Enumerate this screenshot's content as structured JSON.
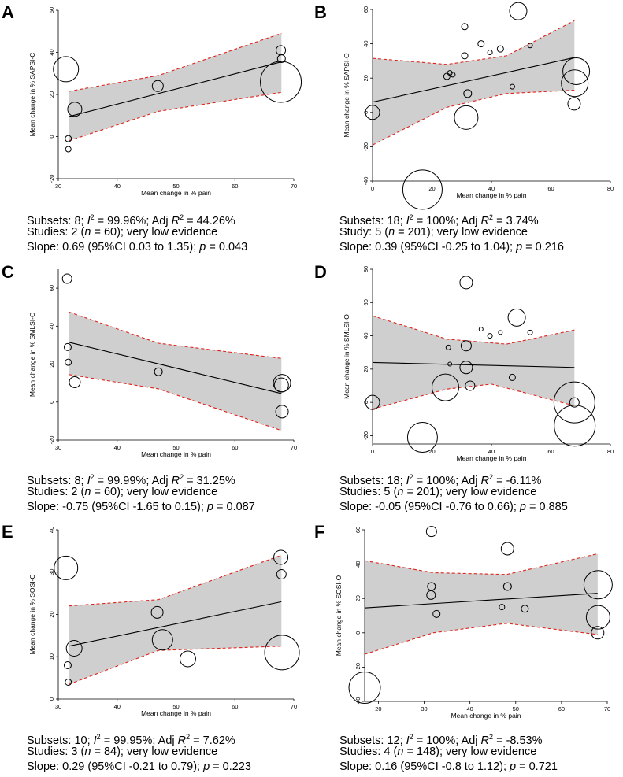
{
  "chart_data": [
    {
      "type": "scatter",
      "letter": "A",
      "xlabel": "Mean change in % pain",
      "ylabel": "Mean change in % SAPSI-C",
      "xlim": [
        30,
        70
      ],
      "ylim": [
        -20,
        60
      ],
      "xticks": [
        "30",
        "40",
        "50",
        "60",
        "70"
      ],
      "yticks": [
        "-20",
        "0",
        "20",
        "40",
        "60"
      ],
      "points": [
        {
          "x": 31.3,
          "y": 32,
          "size": 16
        },
        {
          "x": 31.7,
          "y": -1,
          "size": 4
        },
        {
          "x": 31.7,
          "y": -6,
          "size": 3.5
        },
        {
          "x": 32.8,
          "y": 13,
          "size": 9
        },
        {
          "x": 46.9,
          "y": 24,
          "size": 7
        },
        {
          "x": 67.8,
          "y": 41,
          "size": 6
        },
        {
          "x": 67.9,
          "y": 37,
          "size": 5
        },
        {
          "x": 67.8,
          "y": 26,
          "size": 26
        }
      ],
      "fit": {
        "x": [
          31.8,
          67.9
        ],
        "y": [
          9.5,
          35.5
        ]
      },
      "ci_upper": [
        {
          "x": 31.8,
          "y": 21.5
        },
        {
          "x": 47,
          "y": 29
        },
        {
          "x": 67.9,
          "y": 49
        }
      ],
      "ci_lower": [
        {
          "x": 31.8,
          "y": -2
        },
        {
          "x": 47,
          "y": 12
        },
        {
          "x": 67.9,
          "y": 21
        }
      ],
      "stats": {
        "line1": {
          "pre": "Subsets: 8; ",
          "i2": "I",
          "i2sup": "2",
          "i2val": " = 99.96%; Adj ",
          "r2": "R",
          "r2sup": "2",
          "r2val": " = 44.26%"
        },
        "line2": {
          "pre": "Studies: 2 (",
          "n": "n",
          "post": " = 60); very low evidence"
        },
        "line3": {
          "pre": "Slope: 0.69 (95%CI 0.03 to 1.35); ",
          "p": "p",
          "post": " = 0.043"
        }
      }
    },
    {
      "type": "scatter",
      "letter": "B",
      "xlabel": "Mean change in % pain",
      "ylabel": "Mean change in % SAPSI-O",
      "xlim": [
        0,
        80
      ],
      "ylim": [
        -40,
        60
      ],
      "xticks": [
        "0",
        "20",
        "40",
        "60",
        "80"
      ],
      "yticks": [
        "-40",
        "-20",
        "0",
        "20",
        "40",
        "60"
      ],
      "points": [
        {
          "x": 0,
          "y": 0,
          "size": 9
        },
        {
          "x": 16.8,
          "y": -45,
          "size": 25
        },
        {
          "x": 25,
          "y": 21,
          "size": 4
        },
        {
          "x": 26,
          "y": 23,
          "size": 3
        },
        {
          "x": 27,
          "y": 22,
          "size": 3
        },
        {
          "x": 31,
          "y": 50,
          "size": 4
        },
        {
          "x": 31,
          "y": 33,
          "size": 4
        },
        {
          "x": 32,
          "y": 11,
          "size": 5
        },
        {
          "x": 31.5,
          "y": -3,
          "size": 15
        },
        {
          "x": 36.5,
          "y": 40,
          "size": 4
        },
        {
          "x": 39.5,
          "y": 35,
          "size": 3
        },
        {
          "x": 43,
          "y": 37,
          "size": 4
        },
        {
          "x": 47,
          "y": 15,
          "size": 3
        },
        {
          "x": 49,
          "y": 59,
          "size": 11
        },
        {
          "x": 53,
          "y": 39,
          "size": 3
        },
        {
          "x": 68.5,
          "y": 24,
          "size": 17
        },
        {
          "x": 68,
          "y": 17,
          "size": 17
        },
        {
          "x": 67.8,
          "y": 5,
          "size": 8
        }
      ],
      "fit": {
        "x": [
          0,
          67.9
        ],
        "y": [
          6,
          32
        ]
      },
      "ci_upper": [
        {
          "x": 0,
          "y": 31.5
        },
        {
          "x": 25,
          "y": 28
        },
        {
          "x": 45,
          "y": 33
        },
        {
          "x": 67.9,
          "y": 53.5
        }
      ],
      "ci_lower": [
        {
          "x": 0,
          "y": -19
        },
        {
          "x": 25,
          "y": 3
        },
        {
          "x": 45,
          "y": 11
        },
        {
          "x": 67.9,
          "y": 13
        }
      ],
      "stats": {
        "line1": {
          "pre": "Subsets: 18; ",
          "i2": "I",
          "i2sup": "2",
          "i2val": " = 100%; Adj ",
          "r2": "R",
          "r2sup": "2",
          "r2val": " = 3.74%"
        },
        "line2": {
          "pre": "Study: 5 (",
          "n": "n",
          "post": " = 201); very low evidence"
        },
        "line3": {
          "pre": "Slope: 0.39 (95%CI -0.25 to 1.04); ",
          "p": "p",
          "post": " = 0.216"
        }
      }
    },
    {
      "type": "scatter",
      "letter": "C",
      "xlabel": "Mean change in % pain",
      "ylabel": "Mean change in % SMLSI-C",
      "xlim": [
        30,
        70
      ],
      "ylim": [
        -20,
        70
      ],
      "xticks": [
        "30",
        "40",
        "50",
        "60",
        "70"
      ],
      "yticks": [
        "-20",
        "0",
        "20",
        "40",
        "60"
      ],
      "points": [
        {
          "x": 31.5,
          "y": 65,
          "size": 6
        },
        {
          "x": 31.6,
          "y": 29,
          "size": 4.5
        },
        {
          "x": 31.7,
          "y": 21,
          "size": 4
        },
        {
          "x": 32.8,
          "y": 10.5,
          "size": 7
        },
        {
          "x": 47,
          "y": 16,
          "size": 5
        },
        {
          "x": 68,
          "y": 10,
          "size": 11
        },
        {
          "x": 67.9,
          "y": 9,
          "size": 9
        },
        {
          "x": 68,
          "y": -5,
          "size": 8
        }
      ],
      "fit": {
        "x": [
          31.8,
          67.9
        ],
        "y": [
          31.5,
          4.5
        ]
      },
      "ci_upper": [
        {
          "x": 31.8,
          "y": 47.5
        },
        {
          "x": 47,
          "y": 31
        },
        {
          "x": 67.9,
          "y": 23
        }
      ],
      "ci_lower": [
        {
          "x": 31.8,
          "y": 14.5
        },
        {
          "x": 47,
          "y": 7
        },
        {
          "x": 67.9,
          "y": -15
        }
      ],
      "stats": {
        "line1": {
          "pre": "Subsets: 8; ",
          "i2": "I",
          "i2sup": "2",
          "i2val": " = 99.99%; Adj ",
          "r2": "R",
          "r2sup": "2",
          "r2val": " = 31.25%"
        },
        "line2": {
          "pre": "Studies: 2 (",
          "n": "n",
          "post": " = 60); very low evidence"
        },
        "line3": {
          "pre": "Slope: -0.75 (95%CI -1.65 to 0.15); ",
          "p": "p",
          "post": " = 0.087"
        }
      }
    },
    {
      "type": "scatter",
      "letter": "D",
      "xlabel": "Mean change in % pain",
      "ylabel": "Mean change in % SMLSI-O",
      "xlim": [
        0,
        80
      ],
      "ylim": [
        -25,
        80
      ],
      "xticks": [
        "0",
        "20",
        "40",
        "60",
        "80"
      ],
      "yticks": [
        "-20",
        "0",
        "20",
        "40",
        "60",
        "80"
      ],
      "points": [
        {
          "x": 0,
          "y": 0,
          "size": 9
        },
        {
          "x": 16.8,
          "y": -21,
          "size": 19
        },
        {
          "x": 24.5,
          "y": 9,
          "size": 17
        },
        {
          "x": 25.5,
          "y": 33,
          "size": 3
        },
        {
          "x": 26,
          "y": 23,
          "size": 2.5
        },
        {
          "x": 31.5,
          "y": 72,
          "size": 8
        },
        {
          "x": 31.5,
          "y": 34,
          "size": 6.5
        },
        {
          "x": 31.5,
          "y": 21,
          "size": 8
        },
        {
          "x": 32.8,
          "y": 10,
          "size": 6
        },
        {
          "x": 36.5,
          "y": 44,
          "size": 2.5
        },
        {
          "x": 39.5,
          "y": 40,
          "size": 3
        },
        {
          "x": 43,
          "y": 42,
          "size": 2.5
        },
        {
          "x": 47,
          "y": 15,
          "size": 4
        },
        {
          "x": 48.5,
          "y": 51,
          "size": 11
        },
        {
          "x": 53,
          "y": 42,
          "size": 3
        },
        {
          "x": 67.9,
          "y": 0,
          "size": 26
        },
        {
          "x": 68,
          "y": -14,
          "size": 26
        },
        {
          "x": 67.9,
          "y": 0,
          "size": 6
        }
      ],
      "fit": {
        "x": [
          0,
          67.9
        ],
        "y": [
          24,
          21
        ]
      },
      "ci_upper": [
        {
          "x": 0,
          "y": 52
        },
        {
          "x": 25,
          "y": 38
        },
        {
          "x": 45,
          "y": 35
        },
        {
          "x": 67.9,
          "y": 43.5
        }
      ],
      "ci_lower": [
        {
          "x": 0,
          "y": -4
        },
        {
          "x": 25,
          "y": 8
        },
        {
          "x": 40,
          "y": 11
        },
        {
          "x": 67.9,
          "y": -2
        }
      ],
      "stats": {
        "line1": {
          "pre": "Subsets: 18; ",
          "i2": "I",
          "i2sup": "2",
          "i2val": " = 100%; Adj ",
          "r2": "R",
          "r2sup": "2",
          "r2val": " = -6.11%"
        },
        "line2": {
          "pre": "Studies: 5 (",
          "n": "n",
          "post": " = 201); very low evidence"
        },
        "line3": {
          "pre": "Slope: -0.05 (95%CI -0.76 to 0.66); ",
          "p": "p",
          "post": " = 0.885"
        }
      }
    },
    {
      "type": "scatter",
      "letter": "E",
      "xlabel": "Mean change in % pain",
      "ylabel": "Mean change in % SOSI-C",
      "xlim": [
        30,
        70
      ],
      "ylim": [
        0,
        40
      ],
      "xticks": [
        "30",
        "40",
        "50",
        "60",
        "70"
      ],
      "yticks": [
        "0",
        "10",
        "20",
        "30",
        "40"
      ],
      "points": [
        {
          "x": 31.3,
          "y": 31,
          "size": 15
        },
        {
          "x": 31.6,
          "y": 8,
          "size": 4.5
        },
        {
          "x": 31.7,
          "y": 4,
          "size": 4
        },
        {
          "x": 32.7,
          "y": 12,
          "size": 10
        },
        {
          "x": 46.8,
          "y": 20.5,
          "size": 7.5
        },
        {
          "x": 47.7,
          "y": 14,
          "size": 13
        },
        {
          "x": 52,
          "y": 9.5,
          "size": 10
        },
        {
          "x": 67.8,
          "y": 33.5,
          "size": 9
        },
        {
          "x": 67.9,
          "y": 29.5,
          "size": 6
        },
        {
          "x": 68,
          "y": 11,
          "size": 22
        }
      ],
      "fit": {
        "x": [
          31.8,
          67.9
        ],
        "y": [
          12.5,
          23
        ]
      },
      "ci_upper": [
        {
          "x": 31.8,
          "y": 22
        },
        {
          "x": 47,
          "y": 23.5
        },
        {
          "x": 67.9,
          "y": 34
        }
      ],
      "ci_lower": [
        {
          "x": 31.8,
          "y": 3.5
        },
        {
          "x": 47,
          "y": 11.5
        },
        {
          "x": 67.9,
          "y": 12.5
        }
      ],
      "stats": {
        "line1": {
          "pre": "Subsets: 10; ",
          "i2": "I",
          "i2sup": "2",
          "i2val": " = 99.95%; Adj ",
          "r2": "R",
          "r2sup": "2",
          "r2val": " = 7.62%"
        },
        "line2": {
          "pre": "Studies: 3 (",
          "n": "n",
          "post": " = 84); very low evidence"
        },
        "line3": {
          "pre": "Slope: 0.29 (95%CI -0.21 to 0.79); ",
          "p": "p",
          "post": " = 0.223"
        }
      }
    },
    {
      "type": "scatter",
      "letter": "F",
      "xlabel": "Mean change in % pain",
      "ylabel": "Mean change in % SOSI-O",
      "xlim": [
        17,
        70
      ],
      "ylim": [
        -40,
        60
      ],
      "xticks": [
        "20",
        "30",
        "40",
        "50",
        "60",
        "70"
      ],
      "yticks": [
        "-40",
        "-20",
        "0",
        "20",
        "40",
        "60"
      ],
      "points": [
        {
          "x": 17,
          "y": -32,
          "size": 20
        },
        {
          "x": 31.6,
          "y": 59,
          "size": 6.5
        },
        {
          "x": 31.6,
          "y": 27,
          "size": 5
        },
        {
          "x": 31.5,
          "y": 22,
          "size": 5.5
        },
        {
          "x": 32.7,
          "y": 11,
          "size": 4.5
        },
        {
          "x": 47,
          "y": 15,
          "size": 3.5
        },
        {
          "x": 48.2,
          "y": 49,
          "size": 8
        },
        {
          "x": 48.2,
          "y": 27,
          "size": 5
        },
        {
          "x": 52,
          "y": 14,
          "size": 4.5
        },
        {
          "x": 68,
          "y": 28,
          "size": 18
        },
        {
          "x": 68,
          "y": 9,
          "size": 15
        },
        {
          "x": 67.9,
          "y": 0,
          "size": 8
        }
      ],
      "fit": {
        "x": [
          17,
          67.9
        ],
        "y": [
          14.5,
          23
        ]
      },
      "ci_upper": [
        {
          "x": 17,
          "y": 42
        },
        {
          "x": 32,
          "y": 35
        },
        {
          "x": 48,
          "y": 34
        },
        {
          "x": 67.9,
          "y": 46
        }
      ],
      "ci_lower": [
        {
          "x": 17,
          "y": -12.5
        },
        {
          "x": 32,
          "y": 0
        },
        {
          "x": 48,
          "y": 5.5
        },
        {
          "x": 67.9,
          "y": -1
        }
      ],
      "stats": {
        "line1": {
          "pre": "Subsets: 12; ",
          "i2": "I",
          "i2sup": "2",
          "i2val": " = 100%; Adj ",
          "r2": "R",
          "r2sup": "2",
          "r2val": " = -8.53%"
        },
        "line2": {
          "pre": "Studies: 4 (",
          "n": "n",
          "post": " = 148); very low evidence"
        },
        "line3": {
          "pre": "Slope: 0.16 (95%CI -0.8 to 1.12); ",
          "p": "p",
          "post": " = 0.721"
        }
      }
    }
  ]
}
